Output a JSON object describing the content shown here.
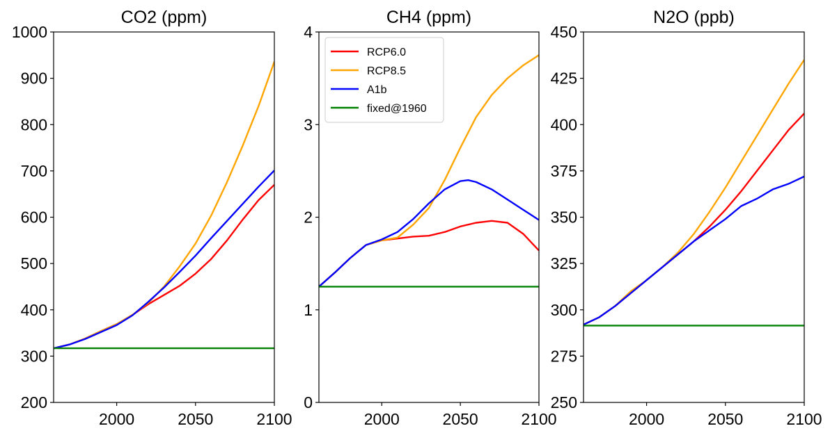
{
  "chart_data": [
    {
      "type": "line",
      "title": "CO2 (ppm)",
      "xlim": [
        1960,
        2100
      ],
      "ylim": [
        200,
        1000
      ],
      "xticks": [
        2000,
        2050,
        2100
      ],
      "xtick_labels": [
        "2000",
        "2050",
        "2100"
      ],
      "yticks": [
        200,
        300,
        400,
        500,
        600,
        700,
        800,
        900,
        1000
      ],
      "ytick_labels": [
        "200",
        "300",
        "400",
        "500",
        "600",
        "700",
        "800",
        "900",
        "1000"
      ],
      "series": [
        {
          "name": "RCP6.0",
          "color": "#ff0000",
          "x": [
            1960,
            1970,
            1980,
            1990,
            2000,
            2010,
            2020,
            2030,
            2040,
            2050,
            2060,
            2070,
            2080,
            2090,
            2100
          ],
          "y": [
            317,
            325,
            338,
            354,
            369,
            389,
            412,
            432,
            452,
            478,
            510,
            550,
            595,
            637,
            670
          ]
        },
        {
          "name": "RCP8.5",
          "color": "#ffa500",
          "x": [
            1960,
            1970,
            1980,
            1990,
            2000,
            2010,
            2020,
            2030,
            2040,
            2050,
            2060,
            2070,
            2080,
            2090,
            2100
          ],
          "y": [
            317,
            325,
            338,
            354,
            369,
            389,
            415,
            450,
            494,
            543,
            604,
            676,
            755,
            840,
            936
          ]
        },
        {
          "name": "A1b",
          "color": "#0000ff",
          "x": [
            1960,
            1970,
            1980,
            1990,
            2000,
            2010,
            2020,
            2030,
            2040,
            2050,
            2060,
            2070,
            2080,
            2090,
            2100
          ],
          "y": [
            317,
            325,
            337,
            352,
            367,
            388,
            417,
            448,
            482,
            517,
            555,
            592,
            629,
            666,
            701
          ]
        },
        {
          "name": "fixed@1960",
          "color": "#008000",
          "x": [
            1960,
            2100
          ],
          "y": [
            317,
            317
          ]
        }
      ]
    },
    {
      "type": "line",
      "title": "CH4 (ppm)",
      "xlim": [
        1960,
        2100
      ],
      "ylim": [
        0,
        4
      ],
      "xticks": [
        2000,
        2050,
        2100
      ],
      "xtick_labels": [
        "2000",
        "2050",
        "2100"
      ],
      "yticks": [
        0,
        1,
        2,
        3,
        4
      ],
      "ytick_labels": [
        "0",
        "1",
        "2",
        "3",
        "4"
      ],
      "legend": {
        "position": "upper-left",
        "entries": [
          "RCP6.0",
          "RCP8.5",
          "A1b",
          "fixed@1960"
        ]
      },
      "series": [
        {
          "name": "RCP6.0",
          "color": "#ff0000",
          "x": [
            1960,
            1970,
            1980,
            1990,
            2000,
            2010,
            2020,
            2030,
            2040,
            2050,
            2060,
            2070,
            2080,
            2090,
            2100
          ],
          "y": [
            1.25,
            1.4,
            1.56,
            1.7,
            1.75,
            1.77,
            1.79,
            1.8,
            1.84,
            1.9,
            1.94,
            1.96,
            1.94,
            1.82,
            1.64
          ]
        },
        {
          "name": "RCP8.5",
          "color": "#ffa500",
          "x": [
            1960,
            1970,
            1980,
            1990,
            2000,
            2010,
            2020,
            2030,
            2040,
            2050,
            2060,
            2070,
            2080,
            2090,
            2100
          ],
          "y": [
            1.25,
            1.4,
            1.56,
            1.7,
            1.75,
            1.78,
            1.92,
            2.1,
            2.4,
            2.75,
            3.08,
            3.32,
            3.5,
            3.64,
            3.75
          ]
        },
        {
          "name": "A1b",
          "color": "#0000ff",
          "x": [
            1960,
            1970,
            1980,
            1990,
            2000,
            2010,
            2020,
            2030,
            2040,
            2050,
            2055,
            2060,
            2070,
            2080,
            2090,
            2100
          ],
          "y": [
            1.25,
            1.4,
            1.56,
            1.7,
            1.76,
            1.84,
            1.98,
            2.15,
            2.3,
            2.39,
            2.4,
            2.38,
            2.3,
            2.19,
            2.08,
            1.97
          ]
        },
        {
          "name": "fixed@1960",
          "color": "#008000",
          "x": [
            1960,
            2100
          ],
          "y": [
            1.25,
            1.25
          ]
        }
      ]
    },
    {
      "type": "line",
      "title": "N2O (ppb)",
      "xlim": [
        1960,
        2100
      ],
      "ylim": [
        250,
        450
      ],
      "xticks": [
        2000,
        2050,
        2100
      ],
      "xtick_labels": [
        "2000",
        "2050",
        "2100"
      ],
      "yticks": [
        250,
        275,
        300,
        325,
        350,
        375,
        400,
        425,
        450
      ],
      "ytick_labels": [
        "250",
        "275",
        "300",
        "325",
        "350",
        "375",
        "400",
        "425",
        "450"
      ],
      "series": [
        {
          "name": "RCP6.0",
          "color": "#ff0000",
          "x": [
            1960,
            1970,
            1980,
            1990,
            2000,
            2010,
            2020,
            2030,
            2040,
            2050,
            2060,
            2070,
            2080,
            2090,
            2100
          ],
          "y": [
            292,
            296,
            302,
            309,
            316,
            323,
            330,
            337,
            345,
            354,
            364,
            375,
            386,
            397,
            406
          ]
        },
        {
          "name": "RCP8.5",
          "color": "#ffa500",
          "x": [
            1960,
            1970,
            1980,
            1990,
            2000,
            2010,
            2020,
            2030,
            2040,
            2050,
            2060,
            2070,
            2080,
            2090,
            2100
          ],
          "y": [
            292,
            296,
            302,
            310,
            316,
            323,
            331,
            341,
            353,
            366,
            380,
            394,
            408,
            422,
            435
          ]
        },
        {
          "name": "A1b",
          "color": "#0000ff",
          "x": [
            1960,
            1970,
            1980,
            1990,
            2000,
            2010,
            2020,
            2030,
            2040,
            2050,
            2060,
            2070,
            2080,
            2090,
            2100
          ],
          "y": [
            292,
            296,
            302,
            309,
            316,
            323,
            330,
            337,
            343,
            349,
            356,
            360,
            365,
            368,
            372
          ]
        },
        {
          "name": "fixed@1960",
          "color": "#008000",
          "x": [
            1960,
            2100
          ],
          "y": [
            291.5,
            291.5
          ]
        }
      ]
    }
  ]
}
